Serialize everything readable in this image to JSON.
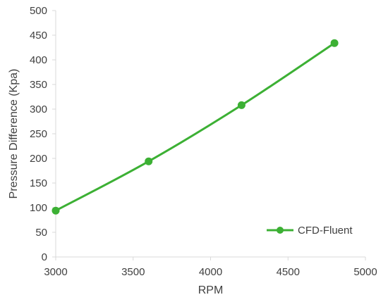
{
  "chart_data": {
    "type": "line",
    "xlabel": "RPM",
    "ylabel": "Pressure Difference (Kpa)",
    "xlim": [
      3000,
      5000
    ],
    "ylim": [
      0,
      500
    ],
    "xticks": [
      3000,
      3500,
      4000,
      4500,
      5000
    ],
    "yticks": [
      0,
      50,
      100,
      150,
      200,
      250,
      300,
      350,
      400,
      450,
      500
    ],
    "grid": false,
    "legend_position": "bottom-right",
    "series": [
      {
        "name": "CFD-Fluent",
        "color": "#3cb034",
        "marker": "circle",
        "smooth": true,
        "x": [
          3000,
          3600,
          4200,
          4800
        ],
        "y": [
          94,
          194,
          308,
          434
        ]
      }
    ]
  }
}
